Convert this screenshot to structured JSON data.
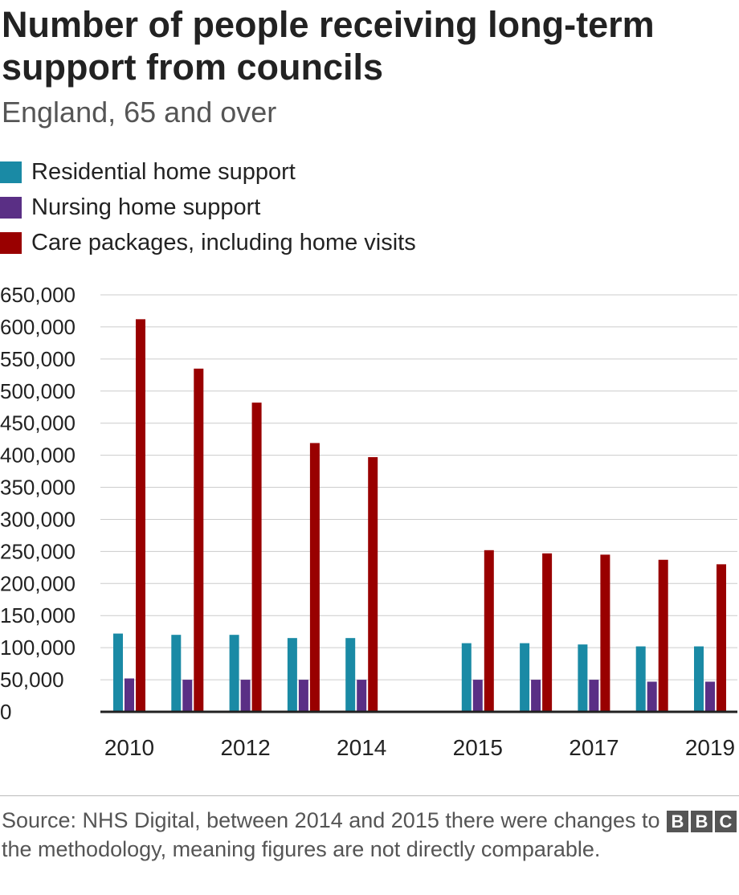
{
  "title": "Number of people receiving long-term support from councils",
  "subtitle": "England, 65 and over",
  "legend": [
    {
      "label": "Residential home support",
      "color": "#1a8aa5"
    },
    {
      "label": "Nursing home support",
      "color": "#5a2f85"
    },
    {
      "label": "Care packages, including home visits",
      "color": "#990000"
    }
  ],
  "chart_data": {
    "type": "bar",
    "categories": [
      "2010",
      "2011",
      "2012",
      "2013",
      "2014",
      "",
      "2015",
      "2016",
      "2017",
      "2018",
      "2019"
    ],
    "tick_labels": [
      "2010",
      "2012",
      "2014",
      "2015",
      "2017",
      "2019"
    ],
    "series": [
      {
        "name": "Residential home support",
        "color": "#1a8aa5",
        "values": [
          122000,
          120000,
          120000,
          115000,
          115000,
          null,
          107000,
          107000,
          105000,
          102000,
          102000
        ]
      },
      {
        "name": "Nursing home support",
        "color": "#5a2f85",
        "values": [
          52000,
          50000,
          50000,
          50000,
          50000,
          null,
          50000,
          50000,
          50000,
          47000,
          47000
        ]
      },
      {
        "name": "Care packages, including home visits",
        "color": "#990000",
        "values": [
          612000,
          535000,
          482000,
          419000,
          397000,
          null,
          252000,
          247000,
          245000,
          237000,
          230000
        ]
      }
    ],
    "yticks": [
      "650,000",
      "600,000",
      "550,000",
      "500,000",
      "450,000",
      "400,000",
      "350,000",
      "300,000",
      "250,000",
      "200,000",
      "150,000",
      "100,000",
      "50,000",
      "0"
    ],
    "ylim": [
      0,
      650000
    ],
    "grid": true,
    "legend_position": "top-left"
  },
  "source": "Source: NHS Digital, between 2014 and 2015 there were changes to the methodology, meaning figures are not directly comparable.",
  "logo": [
    "B",
    "B",
    "C"
  ]
}
